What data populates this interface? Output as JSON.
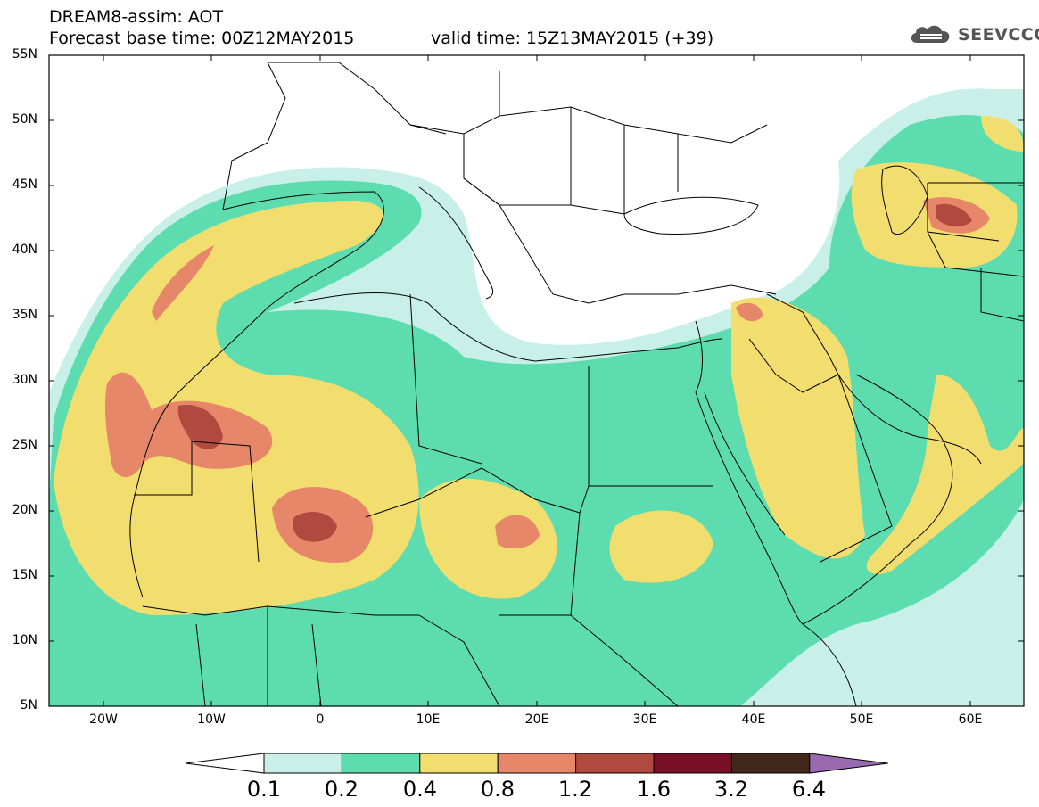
{
  "header": {
    "line1": "DREAM8-assim: AOT",
    "line2": "Forecast base time: 00Z12MAY2015",
    "valid": "valid time: 15Z13MAY2015 (+39)"
  },
  "logo": {
    "text": "SEEVCCC",
    "icon": "cloud-icon"
  },
  "map": {
    "lat_labels": [
      "55N",
      "50N",
      "45N",
      "40N",
      "35N",
      "30N",
      "25N",
      "20N",
      "15N",
      "10N",
      "5N"
    ],
    "lon_labels": [
      "20W",
      "10W",
      "0",
      "10E",
      "20E",
      "30E",
      "40E",
      "50E",
      "60E"
    ]
  },
  "colorbar": {
    "levels": [
      "0.1",
      "0.2",
      "0.4",
      "0.8",
      "1.2",
      "1.6",
      "3.2",
      "6.4"
    ],
    "colors": [
      "#ffffff",
      "#c8f0e8",
      "#5ddcb0",
      "#f2de6e",
      "#e6876a",
      "#b04a3e",
      "#7a0f2a",
      "#42281a",
      "#9a6ab0"
    ]
  }
}
